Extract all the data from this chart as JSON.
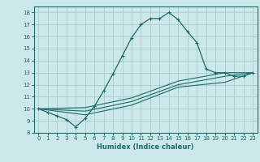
{
  "title": "",
  "xlabel": "Humidex (Indice chaleur)",
  "bg_color": "#cce8e8",
  "grid_color": "#aacccc",
  "line_color": "#1a6b6b",
  "xlim": [
    -0.5,
    23.5
  ],
  "ylim": [
    8,
    18.5
  ],
  "xticks": [
    0,
    1,
    2,
    3,
    4,
    5,
    6,
    7,
    8,
    9,
    10,
    11,
    12,
    13,
    14,
    15,
    16,
    17,
    18,
    19,
    20,
    21,
    22,
    23
  ],
  "yticks": [
    8,
    9,
    10,
    11,
    12,
    13,
    14,
    15,
    16,
    17,
    18
  ],
  "line1_x": [
    0,
    1,
    2,
    3,
    4,
    5,
    6,
    7,
    8,
    9,
    10,
    11,
    12,
    13,
    14,
    15,
    16,
    17,
    18,
    19,
    20,
    21,
    22,
    23
  ],
  "line1_y": [
    10.0,
    9.7,
    9.4,
    9.1,
    8.5,
    9.2,
    10.2,
    11.5,
    12.9,
    14.4,
    15.9,
    17.0,
    17.5,
    17.5,
    18.0,
    17.4,
    16.4,
    15.5,
    13.3,
    13.0,
    13.0,
    12.7,
    12.7,
    13.0
  ],
  "line2_x": [
    0,
    5,
    10,
    15,
    20,
    23
  ],
  "line2_y": [
    10.0,
    9.5,
    10.3,
    11.8,
    12.2,
    13.0
  ],
  "line3_x": [
    0,
    5,
    10,
    15,
    20,
    23
  ],
  "line3_y": [
    10.0,
    9.8,
    10.6,
    12.0,
    12.7,
    13.0
  ],
  "line4_x": [
    0,
    5,
    10,
    15,
    20,
    23
  ],
  "line4_y": [
    10.0,
    10.1,
    10.9,
    12.3,
    13.0,
    13.0
  ],
  "xlabel_fontsize": 6,
  "tick_fontsize": 5
}
